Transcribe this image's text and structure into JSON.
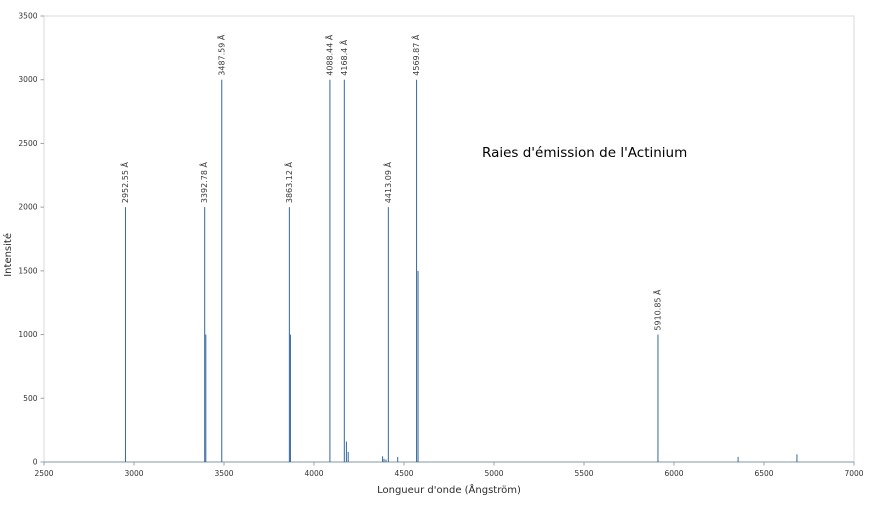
{
  "figure_title": "Raies d'émission de l'Actinium",
  "colors": {
    "line": "#34679a",
    "plot_border": "#d9d9d9",
    "x_axis_line": "#8097a6",
    "tick": "#9aa6ad",
    "tick_text": "#333333",
    "annotation_text": "#3a3a3a",
    "title_text": "#000000",
    "background": "#ffffff"
  },
  "chart_data": {
    "type": "bar",
    "title": "Raies d'émission de l'Actinium",
    "xlabel": "Longueur d'onde (Ångström)",
    "ylabel": "Intensité",
    "xlim": [
      2500,
      7000
    ],
    "ylim": [
      0,
      3500
    ],
    "x_ticks": [
      2500,
      3000,
      3500,
      4000,
      4500,
      5000,
      5500,
      6000,
      6500,
      7000
    ],
    "y_ticks": [
      0,
      500,
      1000,
      1500,
      2000,
      2500,
      3000,
      3500
    ],
    "grid": false,
    "legend": "none",
    "series_name": "Raies d'émission de l'Actinium",
    "lines": [
      {
        "wavelength_angstrom": 2952.55,
        "intensity": 2000,
        "label": "2952.55 Å"
      },
      {
        "wavelength_angstrom": 3392.78,
        "intensity": 2000,
        "label": "3392.78 Å"
      },
      {
        "wavelength_angstrom": 3399.0,
        "intensity": 1000,
        "label": ""
      },
      {
        "wavelength_angstrom": 3487.59,
        "intensity": 3000,
        "label": "3487.59 Å"
      },
      {
        "wavelength_angstrom": 3863.12,
        "intensity": 2000,
        "label": "3863.12 Å"
      },
      {
        "wavelength_angstrom": 3869.0,
        "intensity": 1000,
        "label": ""
      },
      {
        "wavelength_angstrom": 4088.44,
        "intensity": 3000,
        "label": "4088.44 Å"
      },
      {
        "wavelength_angstrom": 4168.4,
        "intensity": 3000,
        "label": "4168.4 Å"
      },
      {
        "wavelength_angstrom": 4180.0,
        "intensity": 160,
        "label": ""
      },
      {
        "wavelength_angstrom": 4190.0,
        "intensity": 80,
        "label": ""
      },
      {
        "wavelength_angstrom": 4381.0,
        "intensity": 45,
        "label": ""
      },
      {
        "wavelength_angstrom": 4389.0,
        "intensity": 25,
        "label": ""
      },
      {
        "wavelength_angstrom": 4400.0,
        "intensity": 20,
        "label": ""
      },
      {
        "wavelength_angstrom": 4413.09,
        "intensity": 2000,
        "label": "4413.09 Å"
      },
      {
        "wavelength_angstrom": 4465.0,
        "intensity": 40,
        "label": ""
      },
      {
        "wavelength_angstrom": 4569.87,
        "intensity": 3000,
        "label": "4569.87 Å"
      },
      {
        "wavelength_angstrom": 4578.0,
        "intensity": 1500,
        "label": ""
      },
      {
        "wavelength_angstrom": 5910.85,
        "intensity": 1000,
        "label": "5910.85 Å"
      },
      {
        "wavelength_angstrom": 6356.0,
        "intensity": 40,
        "label": ""
      },
      {
        "wavelength_angstrom": 6683.0,
        "intensity": 60,
        "label": ""
      }
    ]
  }
}
